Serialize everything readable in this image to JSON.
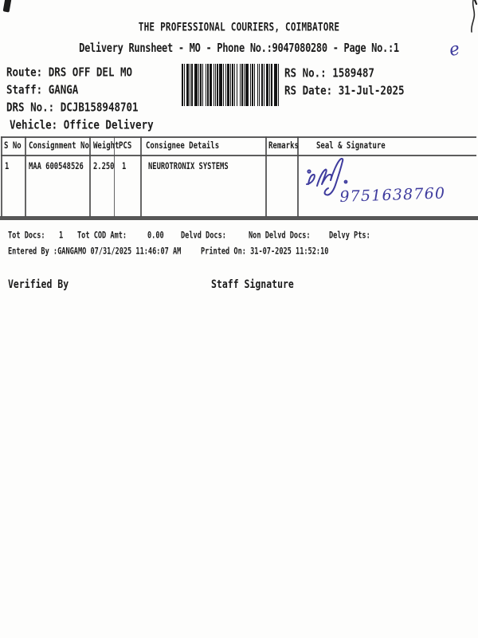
{
  "header": {
    "company": "THE PROFESSIONAL COURIERS, COIMBATORE",
    "runsheet_line": "Delivery Runsheet - MO - Phone No.:9047080280 - Page No.:1"
  },
  "info": {
    "route_label": "Route:",
    "route_value": "DRS OFF DEL MO",
    "staff_label": "Staff:",
    "staff_value": "GANGA",
    "drs_label": "DRS No.:",
    "drs_value": "DCJB158948701",
    "vehicle_label": "Vehicle:",
    "vehicle_value": "Office Delivery",
    "rs_no_label": "RS No.:",
    "rs_no_value": "1589487",
    "rs_date_label": "RS Date:",
    "rs_date_value": "31-Jul-2025"
  },
  "table": {
    "headers": {
      "s_no": "S No",
      "consignment_no": "Consignment No",
      "weight": "Weight",
      "pcs": "PCS",
      "consignee": "Consignee Details",
      "remarks": "Remarks",
      "seal": "Seal & Signature"
    },
    "row": {
      "s_no": "1",
      "consignment_no": "MAA 600548526",
      "weight": "2.250",
      "pcs": "1",
      "consignee": "NEUROTRONIX SYSTEMS",
      "remarks": ""
    }
  },
  "handwritten": {
    "phone": "9751638760",
    "corner_mark": "e"
  },
  "summary": {
    "tot_docs_label": "Tot Docs:",
    "tot_docs_value": "1",
    "tot_cod_label": "Tot COD Amt:",
    "tot_cod_value": "0.00",
    "delvd_label": "Delvd Docs:",
    "non_delvd_label": "Non Delvd Docs:",
    "delvy_pts_label": "Delvy Pts:",
    "entered_label": "Entered By :",
    "entered_value": "GANGAMO 07/31/2025 11:46:07 AM",
    "printed_label": "Printed On:",
    "printed_value": "31-07-2025 11:52:10"
  },
  "signoff": {
    "verified_by": "Verified By",
    "staff_signature": "Staff Signature"
  },
  "colors": {
    "ink_blue": "#3f3c9e",
    "paper": "#fdfdfc",
    "text": "#1b1b1b",
    "line": "#4b4b4b"
  }
}
